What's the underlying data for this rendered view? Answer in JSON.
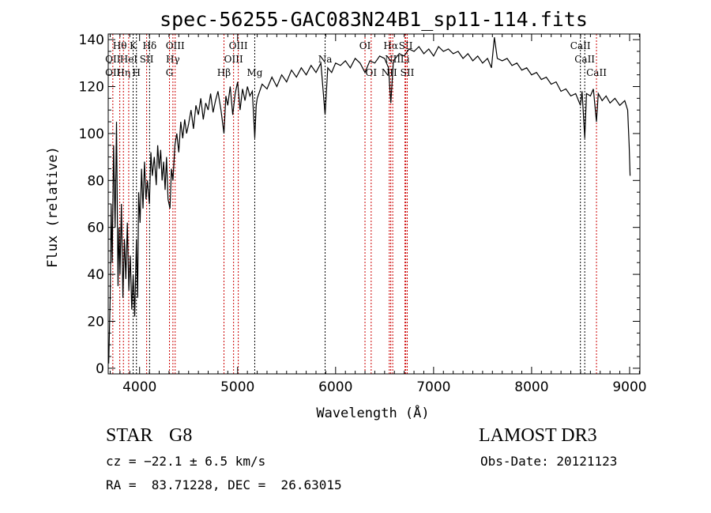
{
  "chart_data": {
    "type": "line",
    "title": "spec-56255-GAC083N24B1_sp11-114.fits",
    "xlabel": "Wavelength (Å)",
    "ylabel": "Flux (relative)",
    "xlim": [
      3680,
      9105
    ],
    "ylim": [
      -2.4,
      142.4
    ],
    "xticks": [
      4000,
      5000,
      6000,
      7000,
      8000,
      9000
    ],
    "yticks": [
      0,
      20,
      40,
      60,
      80,
      100,
      120,
      140
    ],
    "grid": false,
    "series": [
      {
        "name": "spectrum",
        "x": [
          3685,
          3700,
          3710,
          3720,
          3735,
          3750,
          3765,
          3780,
          3790,
          3800,
          3815,
          3830,
          3845,
          3860,
          3875,
          3890,
          3905,
          3920,
          3935,
          3950,
          3968,
          3980,
          3990,
          4005,
          4020,
          4035,
          4050,
          4065,
          4080,
          4100,
          4115,
          4130,
          4150,
          4170,
          4185,
          4200,
          4215,
          4230,
          4245,
          4260,
          4275,
          4290,
          4310,
          4325,
          4340,
          4360,
          4380,
          4400,
          4420,
          4440,
          4460,
          4480,
          4500,
          4525,
          4550,
          4575,
          4600,
          4625,
          4650,
          4675,
          4700,
          4725,
          4750,
          4775,
          4800,
          4830,
          4861,
          4880,
          4900,
          4925,
          4950,
          4975,
          5000,
          5025,
          5050,
          5075,
          5100,
          5125,
          5150,
          5175,
          5190,
          5200,
          5250,
          5300,
          5350,
          5400,
          5450,
          5500,
          5550,
          5600,
          5650,
          5700,
          5750,
          5800,
          5850,
          5893,
          5920,
          5960,
          6000,
          6050,
          6100,
          6150,
          6200,
          6250,
          6300,
          6350,
          6400,
          6450,
          6500,
          6540,
          6563,
          6590,
          6650,
          6700,
          6750,
          6800,
          6850,
          6900,
          6950,
          7000,
          7050,
          7100,
          7150,
          7200,
          7250,
          7300,
          7350,
          7400,
          7450,
          7500,
          7550,
          7590,
          7620,
          7650,
          7700,
          7750,
          7800,
          7850,
          7900,
          7950,
          8000,
          8050,
          8100,
          8150,
          8200,
          8250,
          8300,
          8350,
          8400,
          8450,
          8498,
          8515,
          8542,
          8560,
          8600,
          8630,
          8662,
          8680,
          8720,
          8760,
          8800,
          8850,
          8900,
          8950,
          8980,
          8995,
          9005
        ],
        "y": [
          2,
          30,
          70,
          45,
          95,
          60,
          105,
          35,
          60,
          40,
          70,
          30,
          55,
          38,
          62,
          33,
          48,
          25,
          40,
          22,
          55,
          30,
          75,
          62,
          85,
          68,
          88,
          72,
          80,
          70,
          92,
          82,
          90,
          78,
          95,
          85,
          93,
          80,
          88,
          76,
          90,
          72,
          68,
          85,
          80,
          95,
          100,
          92,
          105,
          98,
          106,
          100,
          104,
          110,
          102,
          112,
          108,
          115,
          106,
          113,
          110,
          117,
          109,
          114,
          118,
          110,
          100,
          116,
          112,
          120,
          108,
          117,
          122,
          110,
          119,
          114,
          120,
          116,
          118,
          98,
          112,
          115,
          121,
          119,
          124,
          120,
          125,
          122,
          127,
          124,
          128,
          125,
          129,
          126,
          130,
          108,
          128,
          126,
          130,
          129,
          131,
          128,
          132,
          130,
          126,
          131,
          130,
          133,
          132,
          128,
          113,
          131,
          134,
          133,
          136,
          135,
          137,
          134,
          136,
          133,
          137,
          135,
          136,
          134,
          135,
          132,
          134,
          131,
          133,
          130,
          132,
          128,
          141,
          132,
          131,
          132,
          129,
          130,
          127,
          128,
          125,
          126,
          123,
          124,
          121,
          122,
          118,
          119,
          116,
          117,
          112,
          118,
          98,
          117,
          116,
          119,
          105,
          117,
          114,
          116,
          113,
          115,
          112,
          114,
          110,
          95,
          82
        ]
      }
    ],
    "line_markers": [
      {
        "wave": 3727,
        "color": "#cc0000",
        "label": "OII",
        "row": 2
      },
      {
        "wave": 3727,
        "color": "#cc0000",
        "label": "OII",
        "row": 3
      },
      {
        "wave": 3798,
        "color": "#cc0000",
        "label": "Hθ",
        "row": 1
      },
      {
        "wave": 3835,
        "color": "#cc0000",
        "label": "Hη",
        "row": 3
      },
      {
        "wave": 3889,
        "color": "#cc0000",
        "label": "HeI",
        "row": 2
      },
      {
        "wave": 3934,
        "color": "#000000",
        "label": "K",
        "row": 1
      },
      {
        "wave": 3968,
        "color": "#000000",
        "label": "H",
        "row": 3
      },
      {
        "wave": 4072,
        "color": "#cc0000",
        "label": "SII",
        "row": 2
      },
      {
        "wave": 4102,
        "color": "#000000",
        "label": "Hδ",
        "row": 1
      },
      {
        "wave": 4305,
        "color": "#cc0000",
        "label": "G",
        "row": 3
      },
      {
        "wave": 4340,
        "color": "#cc0000",
        "label": "Hγ",
        "row": 2
      },
      {
        "wave": 4363,
        "color": "#cc0000",
        "label": "OIII",
        "row": 1
      },
      {
        "wave": 4861,
        "color": "#cc0000",
        "label": "Hβ",
        "row": 3
      },
      {
        "wave": 4959,
        "color": "#cc0000",
        "label": "OIII",
        "row": 2
      },
      {
        "wave": 5007,
        "color": "#cc0000",
        "label": "OIII",
        "row": 1
      },
      {
        "wave": 5175,
        "color": "#000000",
        "label": "Mg",
        "row": 3
      },
      {
        "wave": 5893,
        "color": "#000000",
        "label": "Na",
        "row": 2
      },
      {
        "wave": 6300,
        "color": "#cc0000",
        "label": "OI",
        "row": 1
      },
      {
        "wave": 6363,
        "color": "#cc0000",
        "label": "OI",
        "row": 3
      },
      {
        "wave": 6548,
        "color": "#cc0000",
        "label": "NII",
        "row": 3
      },
      {
        "wave": 6563,
        "color": "#cc0000",
        "label": "Hα",
        "row": 1
      },
      {
        "wave": 6583,
        "color": "#cc0000",
        "label": "NII",
        "row": 2
      },
      {
        "wave": 6708,
        "color": "#cc0000",
        "label": "Li",
        "row": 2
      },
      {
        "wave": 6716,
        "color": "#cc0000",
        "label": "SII",
        "row": 1
      },
      {
        "wave": 6731,
        "color": "#cc0000",
        "label": "SII",
        "row": 3
      },
      {
        "wave": 8498,
        "color": "#000000",
        "label": "CaII",
        "row": 1
      },
      {
        "wave": 8542,
        "color": "#000000",
        "label": "CaII",
        "row": 2
      },
      {
        "wave": 8662,
        "color": "#cc0000",
        "label": "CaII",
        "row": 3
      }
    ]
  },
  "info": {
    "class": "STAR",
    "subclass": "G8",
    "survey": "LAMOST DR3",
    "cz": "cz = −22.1 ± 6.5 km/s",
    "obs_date": "Obs-Date: 20121123",
    "radec": "RA =  83.71228, DEC =  26.63015"
  }
}
